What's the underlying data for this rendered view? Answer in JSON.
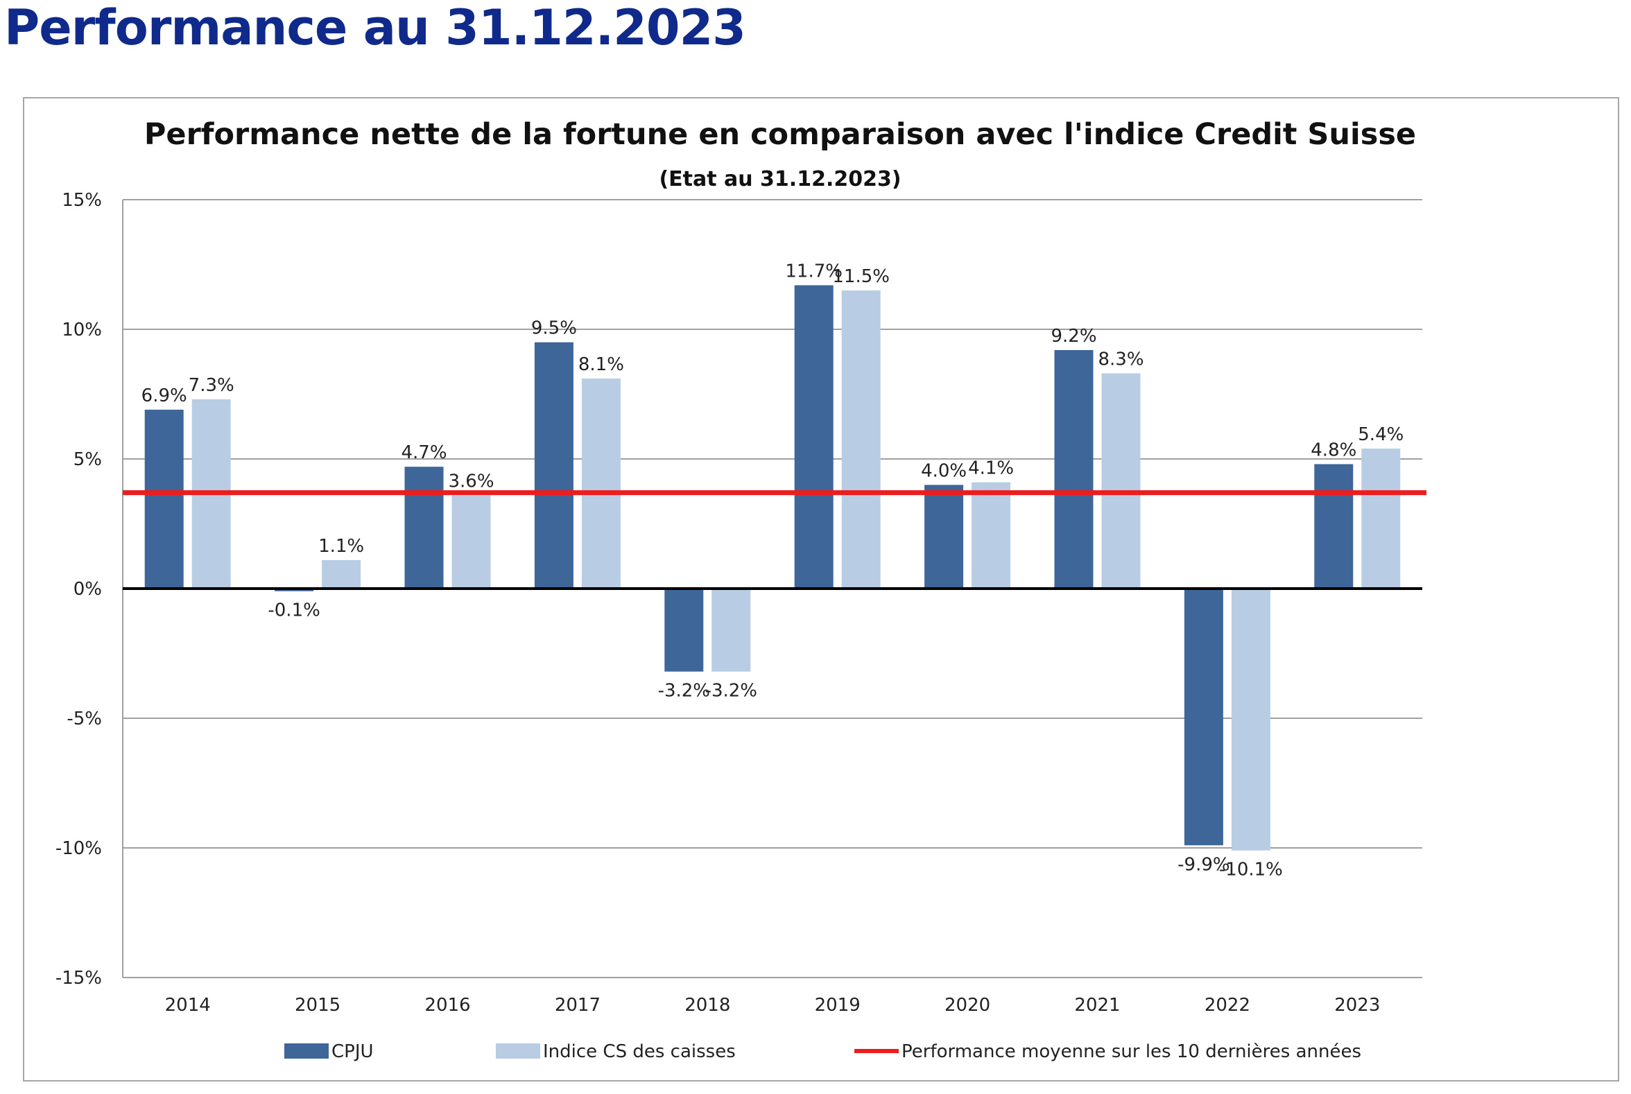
{
  "page": {
    "heading": "Performance au 31.12.2023"
  },
  "colors": {
    "heading": "#102a8c",
    "cpju": "#3f6699",
    "indice": "#b8cce4",
    "average_line": "#ee1c1c",
    "zero_line": "#000000",
    "grid": "#a0a0a0"
  },
  "chart_data": {
    "type": "bar",
    "title": "Performance nette de la fortune en comparaison avec l'indice Credit Suisse",
    "subtitle": "(Etat au 31.12.2023)",
    "categories": [
      "2014",
      "2015",
      "2016",
      "2017",
      "2018",
      "2019",
      "2020",
      "2021",
      "2022",
      "2023"
    ],
    "series": [
      {
        "name": "CPJU",
        "values": [
          6.9,
          -0.1,
          4.7,
          9.5,
          -3.2,
          11.7,
          4.0,
          9.2,
          -9.9,
          4.8
        ],
        "labels": [
          "6.9%",
          "-0.1%",
          "4.7%",
          "9.5%",
          "-3.2%",
          "11.7%",
          "4.0%",
          "9.2%",
          "-9.9%",
          "4.8%"
        ]
      },
      {
        "name": "Indice CS des caisses",
        "values": [
          7.3,
          1.1,
          3.6,
          8.1,
          -3.2,
          11.5,
          4.1,
          8.3,
          -10.1,
          5.4
        ],
        "labels": [
          "7.3%",
          "1.1%",
          "3.6%",
          "8.1%",
          "-3.2%",
          "11.5%",
          "4.1%",
          "8.3%",
          "-10.1%",
          "5.4%"
        ]
      }
    ],
    "reference_line": {
      "name": "Performance moyenne sur les 10 dernières années",
      "value": 3.7
    },
    "ylim": [
      -15,
      15
    ],
    "yticks": [
      15,
      10,
      5,
      0,
      -5,
      -10,
      -15
    ],
    "ytick_labels": [
      "15%",
      "10%",
      "5%",
      "0%",
      "-5%",
      "-10%",
      "-15%"
    ],
    "grid": true,
    "legend_position": "bottom"
  }
}
